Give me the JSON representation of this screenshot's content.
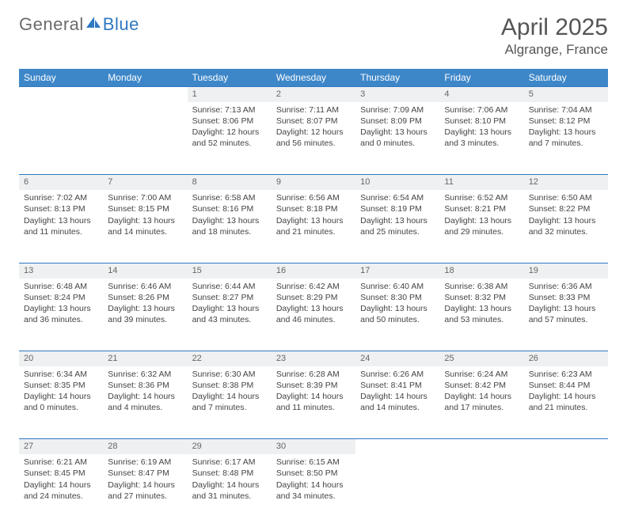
{
  "brand": {
    "part1": "General",
    "part2": "Blue"
  },
  "title": "April 2025",
  "location": "Algrange, France",
  "colors": {
    "header_bg": "#3d87c9",
    "header_text": "#ffffff",
    "daynum_bg": "#eef0f1",
    "row_border": "#2f78c2",
    "logo_gray": "#6b6b6b",
    "logo_blue": "#2f78c2",
    "body_text": "#444444",
    "page_bg": "#ffffff"
  },
  "typography": {
    "month_title_fontsize": 30,
    "location_fontsize": 17,
    "weekday_fontsize": 12,
    "daynum_fontsize": 11,
    "cell_fontsize": 10.5
  },
  "weekdays": [
    "Sunday",
    "Monday",
    "Tuesday",
    "Wednesday",
    "Thursday",
    "Friday",
    "Saturday"
  ],
  "weeks": [
    [
      null,
      null,
      {
        "n": "1",
        "sunrise": "Sunrise: 7:13 AM",
        "sunset": "Sunset: 8:06 PM",
        "daylight": "Daylight: 12 hours and 52 minutes."
      },
      {
        "n": "2",
        "sunrise": "Sunrise: 7:11 AM",
        "sunset": "Sunset: 8:07 PM",
        "daylight": "Daylight: 12 hours and 56 minutes."
      },
      {
        "n": "3",
        "sunrise": "Sunrise: 7:09 AM",
        "sunset": "Sunset: 8:09 PM",
        "daylight": "Daylight: 13 hours and 0 minutes."
      },
      {
        "n": "4",
        "sunrise": "Sunrise: 7:06 AM",
        "sunset": "Sunset: 8:10 PM",
        "daylight": "Daylight: 13 hours and 3 minutes."
      },
      {
        "n": "5",
        "sunrise": "Sunrise: 7:04 AM",
        "sunset": "Sunset: 8:12 PM",
        "daylight": "Daylight: 13 hours and 7 minutes."
      }
    ],
    [
      {
        "n": "6",
        "sunrise": "Sunrise: 7:02 AM",
        "sunset": "Sunset: 8:13 PM",
        "daylight": "Daylight: 13 hours and 11 minutes."
      },
      {
        "n": "7",
        "sunrise": "Sunrise: 7:00 AM",
        "sunset": "Sunset: 8:15 PM",
        "daylight": "Daylight: 13 hours and 14 minutes."
      },
      {
        "n": "8",
        "sunrise": "Sunrise: 6:58 AM",
        "sunset": "Sunset: 8:16 PM",
        "daylight": "Daylight: 13 hours and 18 minutes."
      },
      {
        "n": "9",
        "sunrise": "Sunrise: 6:56 AM",
        "sunset": "Sunset: 8:18 PM",
        "daylight": "Daylight: 13 hours and 21 minutes."
      },
      {
        "n": "10",
        "sunrise": "Sunrise: 6:54 AM",
        "sunset": "Sunset: 8:19 PM",
        "daylight": "Daylight: 13 hours and 25 minutes."
      },
      {
        "n": "11",
        "sunrise": "Sunrise: 6:52 AM",
        "sunset": "Sunset: 8:21 PM",
        "daylight": "Daylight: 13 hours and 29 minutes."
      },
      {
        "n": "12",
        "sunrise": "Sunrise: 6:50 AM",
        "sunset": "Sunset: 8:22 PM",
        "daylight": "Daylight: 13 hours and 32 minutes."
      }
    ],
    [
      {
        "n": "13",
        "sunrise": "Sunrise: 6:48 AM",
        "sunset": "Sunset: 8:24 PM",
        "daylight": "Daylight: 13 hours and 36 minutes."
      },
      {
        "n": "14",
        "sunrise": "Sunrise: 6:46 AM",
        "sunset": "Sunset: 8:26 PM",
        "daylight": "Daylight: 13 hours and 39 minutes."
      },
      {
        "n": "15",
        "sunrise": "Sunrise: 6:44 AM",
        "sunset": "Sunset: 8:27 PM",
        "daylight": "Daylight: 13 hours and 43 minutes."
      },
      {
        "n": "16",
        "sunrise": "Sunrise: 6:42 AM",
        "sunset": "Sunset: 8:29 PM",
        "daylight": "Daylight: 13 hours and 46 minutes."
      },
      {
        "n": "17",
        "sunrise": "Sunrise: 6:40 AM",
        "sunset": "Sunset: 8:30 PM",
        "daylight": "Daylight: 13 hours and 50 minutes."
      },
      {
        "n": "18",
        "sunrise": "Sunrise: 6:38 AM",
        "sunset": "Sunset: 8:32 PM",
        "daylight": "Daylight: 13 hours and 53 minutes."
      },
      {
        "n": "19",
        "sunrise": "Sunrise: 6:36 AM",
        "sunset": "Sunset: 8:33 PM",
        "daylight": "Daylight: 13 hours and 57 minutes."
      }
    ],
    [
      {
        "n": "20",
        "sunrise": "Sunrise: 6:34 AM",
        "sunset": "Sunset: 8:35 PM",
        "daylight": "Daylight: 14 hours and 0 minutes."
      },
      {
        "n": "21",
        "sunrise": "Sunrise: 6:32 AM",
        "sunset": "Sunset: 8:36 PM",
        "daylight": "Daylight: 14 hours and 4 minutes."
      },
      {
        "n": "22",
        "sunrise": "Sunrise: 6:30 AM",
        "sunset": "Sunset: 8:38 PM",
        "daylight": "Daylight: 14 hours and 7 minutes."
      },
      {
        "n": "23",
        "sunrise": "Sunrise: 6:28 AM",
        "sunset": "Sunset: 8:39 PM",
        "daylight": "Daylight: 14 hours and 11 minutes."
      },
      {
        "n": "24",
        "sunrise": "Sunrise: 6:26 AM",
        "sunset": "Sunset: 8:41 PM",
        "daylight": "Daylight: 14 hours and 14 minutes."
      },
      {
        "n": "25",
        "sunrise": "Sunrise: 6:24 AM",
        "sunset": "Sunset: 8:42 PM",
        "daylight": "Daylight: 14 hours and 17 minutes."
      },
      {
        "n": "26",
        "sunrise": "Sunrise: 6:23 AM",
        "sunset": "Sunset: 8:44 PM",
        "daylight": "Daylight: 14 hours and 21 minutes."
      }
    ],
    [
      {
        "n": "27",
        "sunrise": "Sunrise: 6:21 AM",
        "sunset": "Sunset: 8:45 PM",
        "daylight": "Daylight: 14 hours and 24 minutes."
      },
      {
        "n": "28",
        "sunrise": "Sunrise: 6:19 AM",
        "sunset": "Sunset: 8:47 PM",
        "daylight": "Daylight: 14 hours and 27 minutes."
      },
      {
        "n": "29",
        "sunrise": "Sunrise: 6:17 AM",
        "sunset": "Sunset: 8:48 PM",
        "daylight": "Daylight: 14 hours and 31 minutes."
      },
      {
        "n": "30",
        "sunrise": "Sunrise: 6:15 AM",
        "sunset": "Sunset: 8:50 PM",
        "daylight": "Daylight: 14 hours and 34 minutes."
      },
      null,
      null,
      null
    ]
  ]
}
